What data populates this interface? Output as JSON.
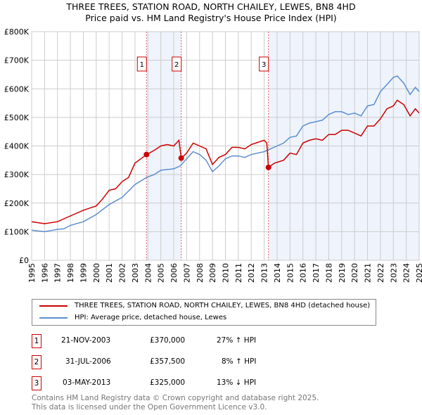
{
  "title_line1": "THREE TREES, STATION ROAD, NORTH CHAILEY, LEWES, BN8 4HD",
  "title_line2": "Price paid vs. HM Land Registry's House Price Index (HPI)",
  "chart_data": {
    "type": "line",
    "xlim": [
      1995,
      2025
    ],
    "ylim": [
      0,
      800000
    ],
    "x_ticks": [
      "1995",
      "1996",
      "1997",
      "1998",
      "1999",
      "2000",
      "2001",
      "2002",
      "2003",
      "2004",
      "2005",
      "2006",
      "2007",
      "2008",
      "2009",
      "2010",
      "2011",
      "2012",
      "2013",
      "2014",
      "2015",
      "2016",
      "2017",
      "2018",
      "2019",
      "2020",
      "2021",
      "2022",
      "2023",
      "2024",
      "2025"
    ],
    "y_ticks": [
      {
        "v": 0,
        "label": "£0"
      },
      {
        "v": 100000,
        "label": "£100K"
      },
      {
        "v": 200000,
        "label": "£200K"
      },
      {
        "v": 300000,
        "label": "£300K"
      },
      {
        "v": 400000,
        "label": "£400K"
      },
      {
        "v": 500000,
        "label": "£500K"
      },
      {
        "v": 600000,
        "label": "£600K"
      },
      {
        "v": 700000,
        "label": "£700K"
      },
      {
        "v": 800000,
        "label": "£800K"
      }
    ],
    "grid": true,
    "series": [
      {
        "name": "THREE TREES, STATION ROAD, NORTH CHAILEY, LEWES, BN8 4HD (detached house)",
        "color": "#cc0000",
        "points": [
          [
            1995,
            135
          ],
          [
            1996,
            128
          ],
          [
            1997,
            135
          ],
          [
            1998,
            155
          ],
          [
            1999,
            175
          ],
          [
            2000,
            190
          ],
          [
            2000.5,
            215
          ],
          [
            2001,
            245
          ],
          [
            2001.5,
            250
          ],
          [
            2002,
            275
          ],
          [
            2002.5,
            290
          ],
          [
            2003,
            340
          ],
          [
            2003.9,
            370
          ],
          [
            2004.5,
            385
          ],
          [
            2005,
            400
          ],
          [
            2005.5,
            405
          ],
          [
            2006,
            400
          ],
          [
            2006.4,
            420
          ],
          [
            2006.58,
            357.5
          ],
          [
            2007,
            375
          ],
          [
            2007.5,
            410
          ],
          [
            2008,
            400
          ],
          [
            2008.5,
            390
          ],
          [
            2009,
            335
          ],
          [
            2009.5,
            360
          ],
          [
            2010,
            370
          ],
          [
            2010.5,
            395
          ],
          [
            2011,
            395
          ],
          [
            2011.5,
            390
          ],
          [
            2012,
            405
          ],
          [
            2013,
            420
          ],
          [
            2013.2,
            410
          ],
          [
            2013.33,
            325
          ],
          [
            2013.8,
            340
          ],
          [
            2014.5,
            350
          ],
          [
            2015,
            375
          ],
          [
            2015.5,
            370
          ],
          [
            2016,
            410
          ],
          [
            2016.5,
            420
          ],
          [
            2017,
            425
          ],
          [
            2017.5,
            420
          ],
          [
            2018,
            440
          ],
          [
            2018.5,
            440
          ],
          [
            2019,
            455
          ],
          [
            2019.5,
            455
          ],
          [
            2020,
            445
          ],
          [
            2020.5,
            435
          ],
          [
            2021,
            470
          ],
          [
            2021.5,
            470
          ],
          [
            2022,
            495
          ],
          [
            2022.5,
            530
          ],
          [
            2023,
            540
          ],
          [
            2023.3,
            560
          ],
          [
            2023.8,
            545
          ],
          [
            2024.3,
            505
          ],
          [
            2024.7,
            530
          ],
          [
            2025,
            515
          ]
        ]
      },
      {
        "name": "HPI: Average price, detached house, Lewes",
        "color": "#5b8fd0",
        "points": [
          [
            1995,
            105
          ],
          [
            1996,
            100
          ],
          [
            1997,
            108
          ],
          [
            1997.5,
            110
          ],
          [
            1998,
            122
          ],
          [
            1999,
            135
          ],
          [
            2000,
            160
          ],
          [
            2001,
            195
          ],
          [
            2002,
            220
          ],
          [
            2003,
            265
          ],
          [
            2003.9,
            290
          ],
          [
            2004.5,
            300
          ],
          [
            2005,
            315
          ],
          [
            2006,
            320
          ],
          [
            2006.5,
            330
          ],
          [
            2007,
            355
          ],
          [
            2007.5,
            380
          ],
          [
            2008,
            370
          ],
          [
            2008.5,
            350
          ],
          [
            2009,
            310
          ],
          [
            2009.5,
            330
          ],
          [
            2010,
            355
          ],
          [
            2010.5,
            365
          ],
          [
            2011,
            365
          ],
          [
            2011.5,
            360
          ],
          [
            2012,
            370
          ],
          [
            2013,
            380
          ],
          [
            2013.5,
            390
          ],
          [
            2014,
            400
          ],
          [
            2014.5,
            410
          ],
          [
            2015,
            430
          ],
          [
            2015.5,
            435
          ],
          [
            2016,
            470
          ],
          [
            2016.5,
            480
          ],
          [
            2017,
            485
          ],
          [
            2017.5,
            490
          ],
          [
            2018,
            510
          ],
          [
            2018.5,
            520
          ],
          [
            2019,
            520
          ],
          [
            2019.5,
            510
          ],
          [
            2020,
            515
          ],
          [
            2020.5,
            505
          ],
          [
            2021,
            540
          ],
          [
            2021.5,
            545
          ],
          [
            2022,
            590
          ],
          [
            2022.5,
            615
          ],
          [
            2023,
            640
          ],
          [
            2023.3,
            645
          ],
          [
            2023.8,
            620
          ],
          [
            2024.3,
            580
          ],
          [
            2024.7,
            605
          ],
          [
            2025,
            590
          ]
        ]
      }
    ],
    "sales": [
      {
        "n": "1",
        "x": 2003.89,
        "price": 370000
      },
      {
        "n": "2",
        "x": 2006.58,
        "price": 357500
      },
      {
        "n": "3",
        "x": 2013.33,
        "price": 325000
      }
    ],
    "shaded": [
      [
        2003.89,
        2006.58
      ],
      [
        2013.33,
        2025
      ]
    ]
  },
  "legend": {
    "red": "THREE TREES, STATION ROAD, NORTH CHAILEY, LEWES, BN8 4HD (detached house)",
    "blue": "HPI: Average price, detached house, Lewes"
  },
  "table": [
    {
      "n": "1",
      "date": "21-NOV-2003",
      "price": "£370,000",
      "hpi": "27% ↑ HPI"
    },
    {
      "n": "2",
      "date": "31-JUL-2006",
      "price": "£357,500",
      "hpi": "8% ↑ HPI"
    },
    {
      "n": "3",
      "date": "03-MAY-2013",
      "price": "£325,000",
      "hpi": "13% ↓ HPI"
    }
  ],
  "footer1": "Contains HM Land Registry data © Crown copyright and database right 2025.",
  "footer2": "This data is licensed under the Open Government Licence v3.0."
}
